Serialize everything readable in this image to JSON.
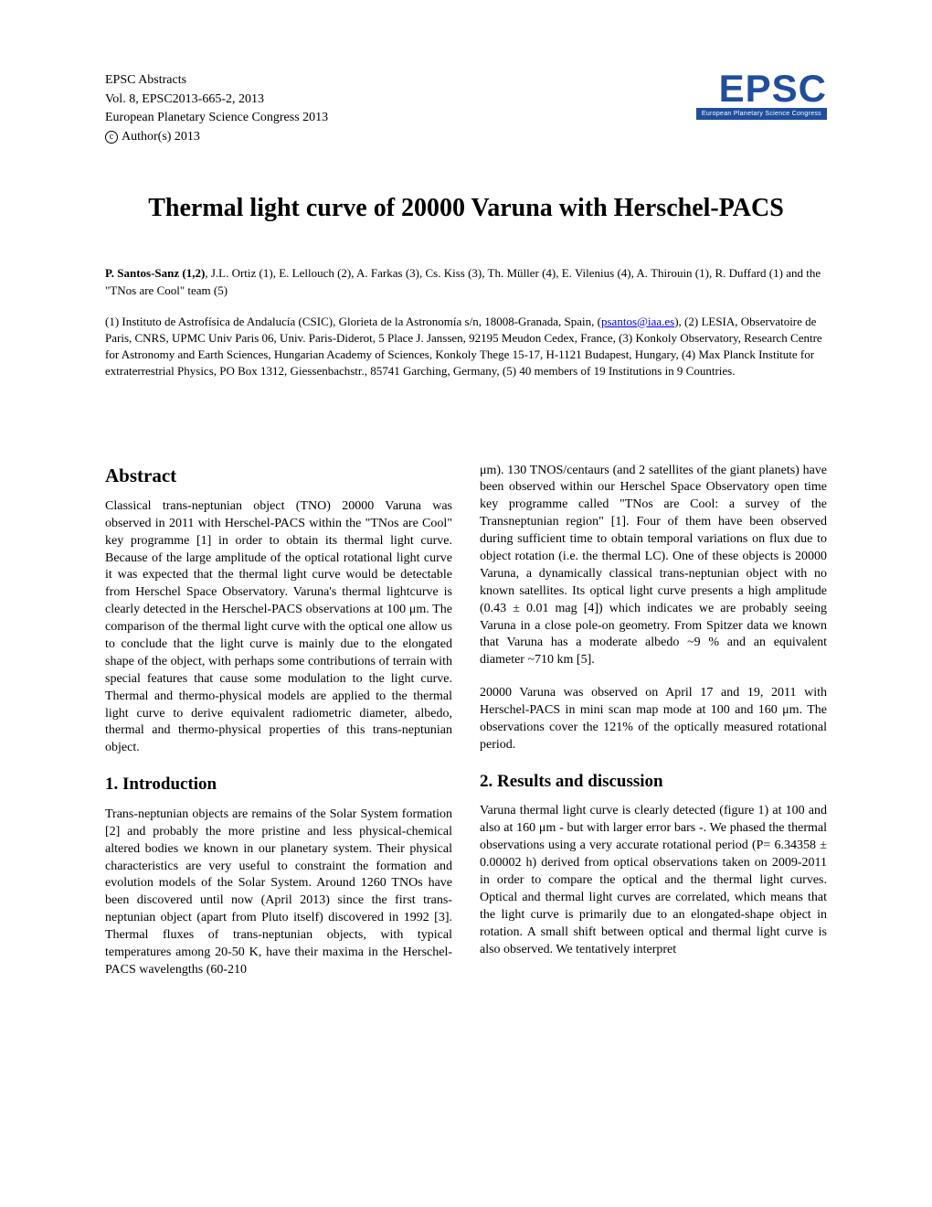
{
  "header": {
    "line1": "EPSC Abstracts",
    "line2": "Vol. 8, EPSC2013-665-2, 2013",
    "line3": "European Planetary Science Congress 2013",
    "copyright_c": "c",
    "copyright_text": "Author(s) 2013"
  },
  "logo": {
    "main": "EPSC",
    "sub": "European Planetary Science Congress"
  },
  "title": "Thermal light curve of 20000 Varuna with Herschel-PACS",
  "authors": {
    "lead": "P. Santos-Sanz (1,2)",
    "rest": ", J.L. Ortiz (1), E. Lellouch (2), A. Farkas (3), Cs. Kiss (3), Th. Müller (4), E. Vilenius (4), A. Thirouin (1), R. Duffard (1) and the \"TNos are Cool\" team (5)"
  },
  "affiliations": {
    "pre": " (1) Instituto de Astrofísica de Andalucía (CSIC), Glorieta de la Astronomía s/n, 18008-Granada, Spain, (",
    "email": "psantos@iaa.es",
    "post": "), (2) LESIA, Observatoire de Paris, CNRS, UPMC Univ Paris 06, Univ. Paris-Diderot, 5 Place J. Janssen, 92195 Meudon Cedex, France, (3) Konkoly Observatory, Research Centre for Astronomy and Earth Sciences, Hungarian Academy of Sciences, Konkoly Thege 15-17, H-1121 Budapest, Hungary, (4) Max Planck Institute for extraterrestrial Physics, PO Box 1312, Giessenbachstr., 85741 Garching, Germany, (5)  40 members of 19 Institutions in 9 Countries."
  },
  "left_col": {
    "heading1": "Abstract",
    "para1": "Classical trans-neptunian object (TNO) 20000 Varuna was observed in 2011 with Herschel-PACS within the \"TNos are Cool\" key programme [1] in order to obtain its thermal light curve. Because of the large amplitude of the optical rotational light curve it was expected that the thermal light curve would be detectable from Herschel Space Observatory. Varuna's thermal lightcurve is clearly detected in the Herschel-PACS observations at 100 μm. The comparison of the thermal light curve with the optical one allow us to conclude that the light curve is mainly due to the elongated shape of the object, with perhaps some contributions of terrain with special features that cause some modulation to the light curve. Thermal and thermo-physical models are applied to the thermal light curve to derive equivalent radiometric diameter, albedo, thermal and thermo-physical properties of this trans-neptunian object.",
    "heading2": "1. Introduction",
    "para2": "Trans-neptunian objects are remains of the Solar System formation [2] and probably the more pristine and less physical-chemical altered bodies we known in our planetary system. Their physical characteristics are very useful to constraint the formation and evolution models of the Solar System. Around 1260 TNOs have been discovered until now (April 2013) since the first trans-neptunian object (apart from Pluto itself) discovered in 1992 [3]. Thermal fluxes of trans-neptunian objects, with typical temperatures among 20-50 K, have their maxima in the Herschel-PACS wavelengths (60-210"
  },
  "right_col": {
    "para1": "μm). 130 TNOS/centaurs (and 2 satellites of the giant planets) have been observed within our Herschel Space Observatory open time key programme called \"TNos are Cool: a survey of the Transneptunian region\" [1]. Four of them have been observed during sufficient time to obtain temporal variations on flux due to object rotation (i.e. the thermal LC). One of these objects is 20000 Varuna, a dynamically classical trans-neptunian object with no known satellites. Its optical light curve presents a high amplitude (0.43 ± 0.01 mag [4]) which indicates we are probably seeing Varuna in a close pole-on geometry. From Spitzer data we known that Varuna has a moderate albedo ~9 % and an equivalent diameter ~710 km [5].",
    "para2": "20000 Varuna was observed on April 17 and 19, 2011 with Herschel-PACS in mini scan map mode at 100 and 160 μm. The observations cover the 121% of the optically measured rotational period.",
    "heading1": "2. Results and discussion",
    "para3": "Varuna thermal light curve is clearly detected (figure 1) at 100 and also at 160 μm - but with larger error bars -. We phased the thermal observations using a very accurate rotational period (P= 6.34358 ± 0.00002 h) derived from optical observations taken on 2009-2011 in order to compare the optical and the thermal light curves. Optical and thermal light curves are correlated, which means that the light curve is primarily due to an elongated-shape object in rotation. A small shift between optical and thermal light curve is also observed. We tentatively interpret"
  }
}
